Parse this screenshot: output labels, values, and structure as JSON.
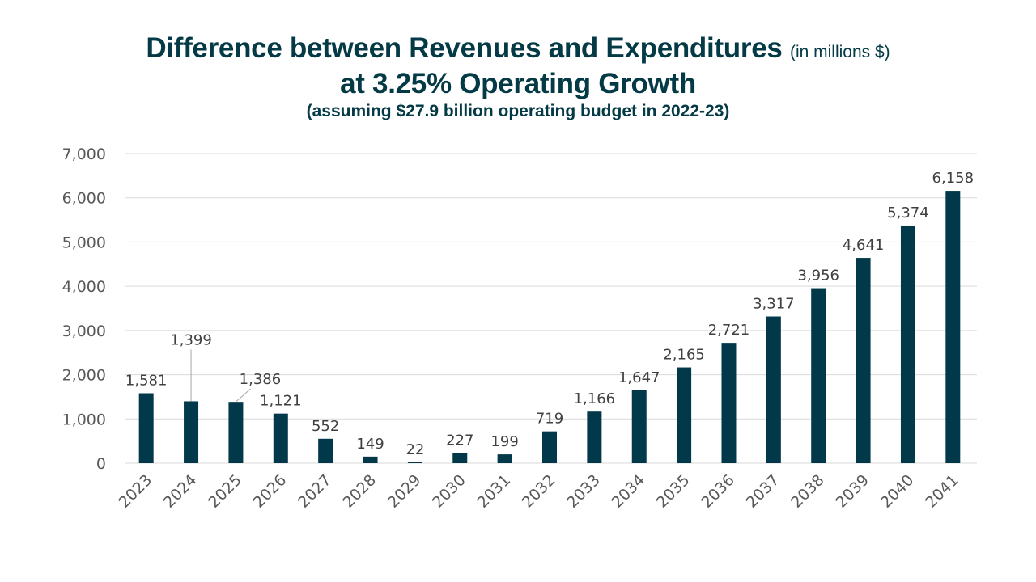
{
  "title": {
    "main": "Difference between Revenues and Expenditures",
    "unit": "(in millions $)",
    "line2": "at 3.25% Operating Growth",
    "subtitle": "(assuming $27.9 billion operating budget in 2022-23)"
  },
  "colors": {
    "bar": "#02394a",
    "title": "#033a45",
    "grid": "#d9d9d9",
    "axis_text": "#595959",
    "label_text": "#404040"
  },
  "chart_data": {
    "type": "bar",
    "title": "Difference between Revenues and Expenditures (in millions $) at 3.25% Operating Growth",
    "subtitle": "(assuming $27.9 billion operating budget in 2022-23)",
    "xlabel": "",
    "ylabel": "",
    "categories": [
      "2023",
      "2024",
      "2025",
      "2026",
      "2027",
      "2028",
      "2029",
      "2030",
      "2031",
      "2032",
      "2033",
      "2034",
      "2035",
      "2036",
      "2037",
      "2038",
      "2039",
      "2040",
      "2041"
    ],
    "values": [
      1581,
      1399,
      1386,
      1121,
      552,
      149,
      22,
      227,
      199,
      719,
      1166,
      1647,
      2165,
      2721,
      3317,
      3956,
      4641,
      5374,
      6158
    ],
    "data_labels": [
      "1,581",
      "1,399",
      "1,386",
      "1,121",
      "552",
      "149",
      "22",
      "227",
      "199",
      "719",
      "1,166",
      "1,647",
      "2,165",
      "2,721",
      "3,317",
      "3,956",
      "4,641",
      "5,374",
      "6,158"
    ],
    "ylim": [
      0,
      7000
    ],
    "yticks": [
      0,
      1000,
      2000,
      3000,
      4000,
      5000,
      6000,
      7000
    ],
    "ytick_labels": [
      "0",
      "1,000",
      "2,000",
      "3,000",
      "4,000",
      "5,000",
      "6,000",
      "7,000"
    ],
    "grid": true,
    "legend": "none",
    "x_tick_rotation": "45 degrees"
  }
}
